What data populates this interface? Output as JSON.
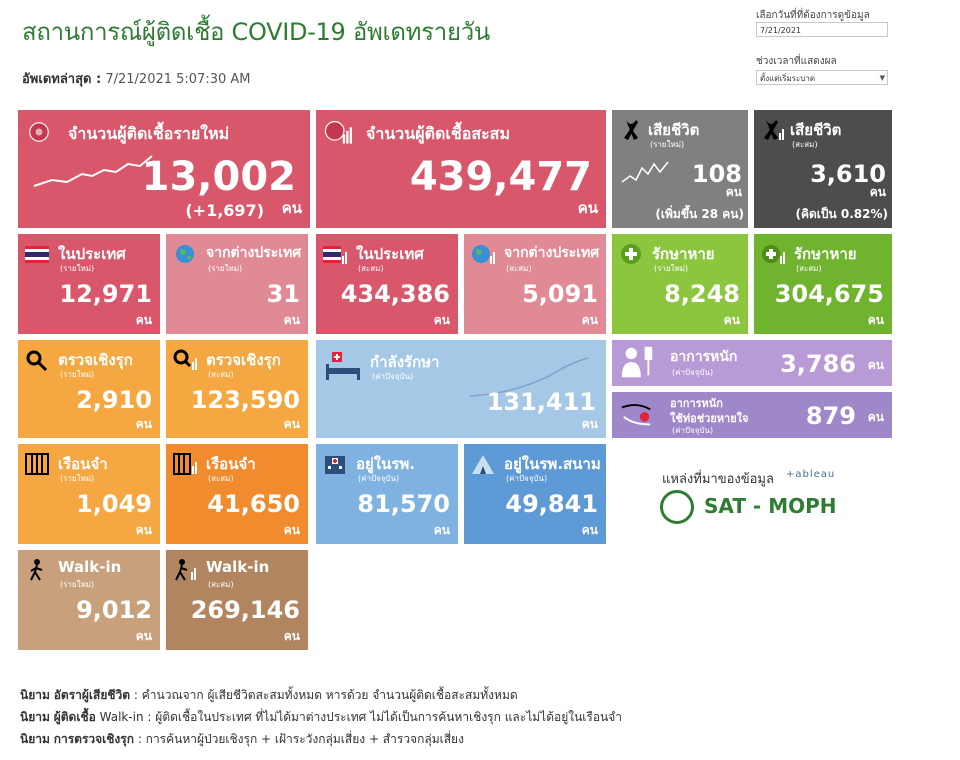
{
  "header": {
    "title": "สถานการณ์ผู้ติดเชื้อ COVID-19 อัพเดทรายวัน",
    "updated_label": "อัพเดทล่าสุด :",
    "updated_value": "7/21/2021 5:07:30 AM"
  },
  "controls": {
    "date_label": "เลือกวันที่ที่ต้องการดูข้อมูล",
    "date_value": "7/21/2021",
    "range_label": "ช่วงเวลาที่แสดงผล",
    "range_value": "ตั้งแต่เริ่มระบาด"
  },
  "unit": "คน",
  "cards": {
    "new_cases": {
      "label": "จำนวนผู้ติดเชื้อรายใหม่",
      "value": "13,002",
      "delta": "(+1,697)",
      "color": "#d9576b"
    },
    "total_cases": {
      "label": "จำนวนผู้ติดเชื้อสะสม",
      "value": "439,477",
      "color": "#d9576b"
    },
    "deaths_new": {
      "label": "เสียชีวิต",
      "sub": "(รายใหม่)",
      "value": "108",
      "note": "(เพิ่มขึ้น 28 คน)",
      "color": "#808080"
    },
    "deaths_total": {
      "label": "เสียชีวิต",
      "sub": "(สะสม)",
      "value": "3,610",
      "note": "(คิดเป็น 0.82%)",
      "color": "#4d4d4d"
    },
    "domestic_new": {
      "label": "ในประเทศ",
      "sub": "(รายใหม่)",
      "value": "12,971",
      "color": "#d9576b"
    },
    "abroad_new": {
      "label": "จากต่างประเทศ",
      "sub": "(รายใหม่)",
      "value": "31",
      "color": "#e08a96"
    },
    "domestic_total": {
      "label": "ในประเทศ",
      "sub": "(สะสม)",
      "value": "434,386",
      "color": "#d9576b"
    },
    "abroad_total": {
      "label": "จากต่างประเทศ",
      "sub": "(สะสม)",
      "value": "5,091",
      "color": "#e08a96"
    },
    "recovered_new": {
      "label": "รักษาหาย",
      "sub": "(รายใหม่)",
      "value": "8,248",
      "color": "#8cc63f"
    },
    "recovered_total": {
      "label": "รักษาหาย",
      "sub": "(สะสม)",
      "value": "304,675",
      "color": "#6fb32e"
    },
    "proactive_new": {
      "label": "ตรวจเชิงรุก",
      "sub": "(รายใหม่)",
      "value": "2,910",
      "color": "#f5a742"
    },
    "proactive_total": {
      "label": "ตรวจเชิงรุก",
      "sub": "(สะสม)",
      "value": "123,590",
      "color": "#f5a742"
    },
    "treating": {
      "label": "กำลังรักษา",
      "sub": "(ค่าปัจจุบัน)",
      "value": "131,411",
      "color": "#a5c8e6"
    },
    "severe": {
      "label": "อาการหนัก",
      "sub": "(ค่าปัจจุบัน)",
      "value": "3,786",
      "color": "#b89ad6"
    },
    "ventilator": {
      "label": "อาการหนัก",
      "label2": "ใช้ท่อช่วยหายใจ",
      "sub": "(ค่าปัจจุบัน)",
      "value": "879",
      "color": "#9e88c9"
    },
    "prison_new": {
      "label": "เรือนจำ",
      "sub": "(รายใหม่)",
      "value": "1,049",
      "color": "#f5a742"
    },
    "prison_total": {
      "label": "เรือนจำ",
      "sub": "(สะสม)",
      "value": "41,650",
      "color": "#f08c2e"
    },
    "hospital": {
      "label": "อยู่ในรพ.",
      "sub": "(ค่าปัจจุบัน)",
      "value": "81,570",
      "color": "#7fb2e0"
    },
    "field_hospital": {
      "label": "อยู่ในรพ.สนาม",
      "sub": "(ค่าปัจจุบัน)",
      "value": "49,841",
      "color": "#5d9ad6"
    },
    "walkin_new": {
      "label": "Walk-in",
      "sub": "(รายใหม่)",
      "value": "9,012",
      "color": "#c9a07c"
    },
    "walkin_total": {
      "label": "Walk-in",
      "sub": "(สะสม)",
      "value": "269,146",
      "color": "#b08560"
    }
  },
  "source": {
    "label": "แหล่งที่มาของข้อมูล",
    "tableau": "+ableau",
    "org": "SAT - MOPH"
  },
  "footnotes": [
    {
      "prefix": "นิยาม",
      "term": "อัตราผู้เสียชีวิต",
      "text": " : คำนวณจาก ผู้เสียชีวิตสะสมทั้งหมด หารด้วย จำนวนผู้ติดเชื้อสะสมทั้งหมด"
    },
    {
      "prefix": "นิยาม",
      "term": "ผู้ติดเชื้อ",
      "text": " Walk-in : ผู้ติดเชื้อในประเทศ ที่ไม่ได้มาต่างประเทศ ไม่ได้เป็นการค้นหาเชิงรุก และไม่ได้อยู่ในเรือนจำ"
    },
    {
      "prefix": "นิยาม",
      "term": "การตรวจเชิงรุก",
      "text": " : การค้นหาผู้ป่วยเชิงรุก + เฝ้าระวังกลุ่มเสี่ยง + สำรวจกลุ่มเสี่ยง"
    }
  ]
}
